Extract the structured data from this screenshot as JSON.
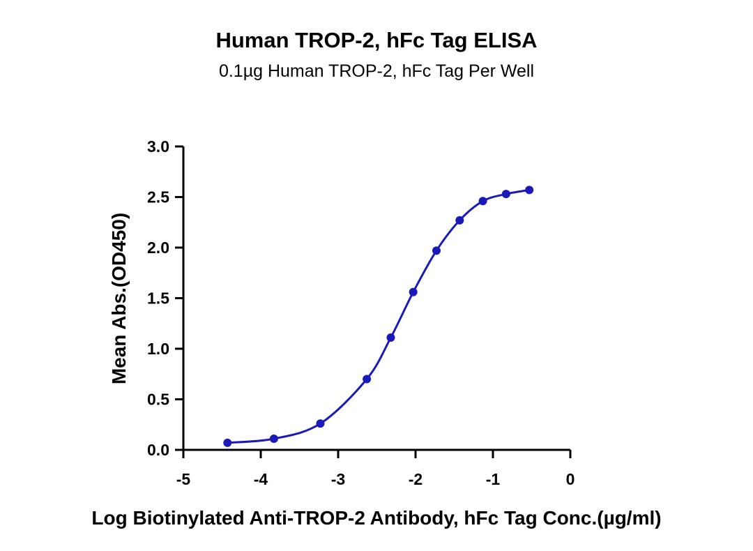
{
  "chart_data": {
    "type": "line",
    "title": "Human TROP-2, hFc Tag ELISA",
    "subtitle": "0.1µg Human TROP-2, hFc Tag Per Well",
    "xlabel": "Log Biotinylated Anti-TROP-2 Antibody, hFc Tag Conc.(µg/ml)",
    "ylabel": "Mean Abs.(OD450)",
    "xlim": [
      -5,
      0
    ],
    "ylim": [
      0,
      3.0
    ],
    "xticks": [
      "-5",
      "-4",
      "-3",
      "-2",
      "-1",
      "0"
    ],
    "yticks": [
      "0.0",
      "0.5",
      "1.0",
      "1.5",
      "2.0",
      "2.5",
      "3.0"
    ],
    "grid": false,
    "color": "#1a1ab8",
    "series": [
      {
        "x": [
          -4.43,
          -3.83,
          -3.23,
          -2.63,
          -2.32,
          -2.03,
          -1.73,
          -1.43,
          -1.13,
          -0.83,
          -0.53
        ],
        "y": [
          0.07,
          0.11,
          0.26,
          0.7,
          1.11,
          1.56,
          1.97,
          2.27,
          2.46,
          2.53,
          2.57
        ]
      }
    ]
  }
}
